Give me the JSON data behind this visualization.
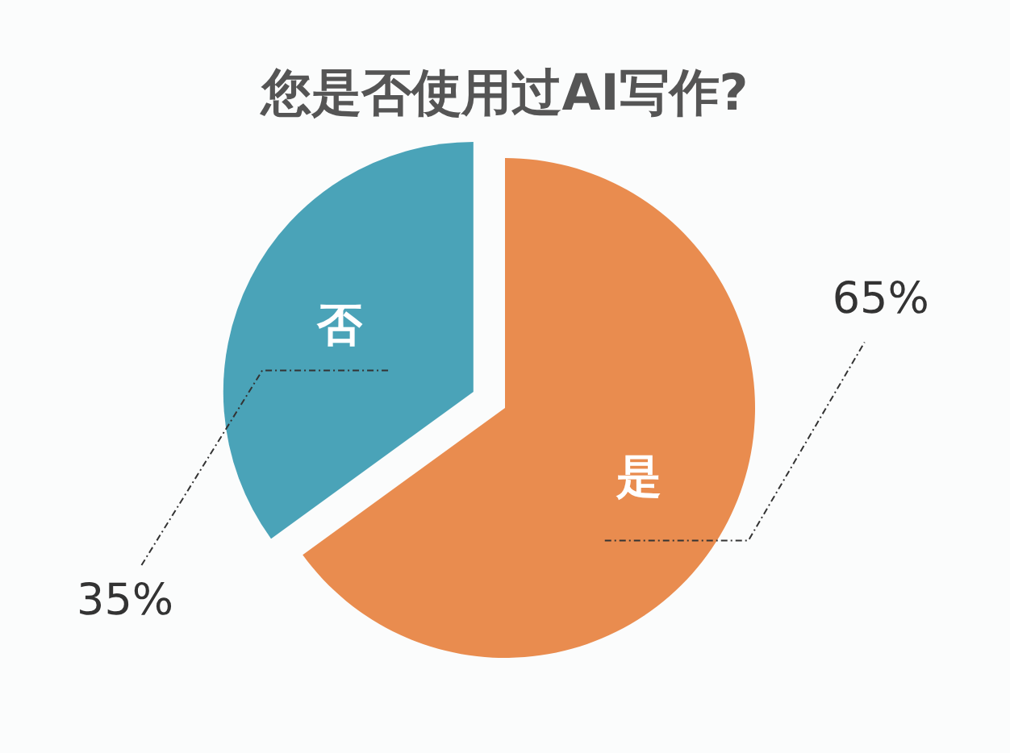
{
  "chart_data": {
    "type": "pie",
    "title": "您是否使用过AI写作?",
    "categories": [
      "是",
      "否"
    ],
    "values": [
      65,
      35
    ],
    "colors": [
      "#e98c4f",
      "#4aa3b8"
    ],
    "value_labels": [
      "65%",
      "35%"
    ]
  }
}
